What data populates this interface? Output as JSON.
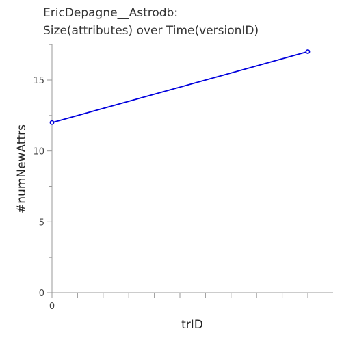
{
  "chart_data": {
    "type": "line",
    "title": [
      "EricDepagne__Astrodb:",
      "Size(attributes) over Time(versionID)"
    ],
    "xlabel": "trID",
    "ylabel": "#numNewAttrs",
    "x_ticks": [
      "0"
    ],
    "xlim": [
      0,
      10.2
    ],
    "ylim": [
      0,
      17.5
    ],
    "y_ticks": [
      0,
      5,
      10,
      15
    ],
    "grid": false,
    "series": [
      {
        "color": "#0000dd",
        "points": [
          {
            "x": 0,
            "y": 12
          },
          {
            "x": 10,
            "y": 17
          }
        ]
      }
    ]
  }
}
